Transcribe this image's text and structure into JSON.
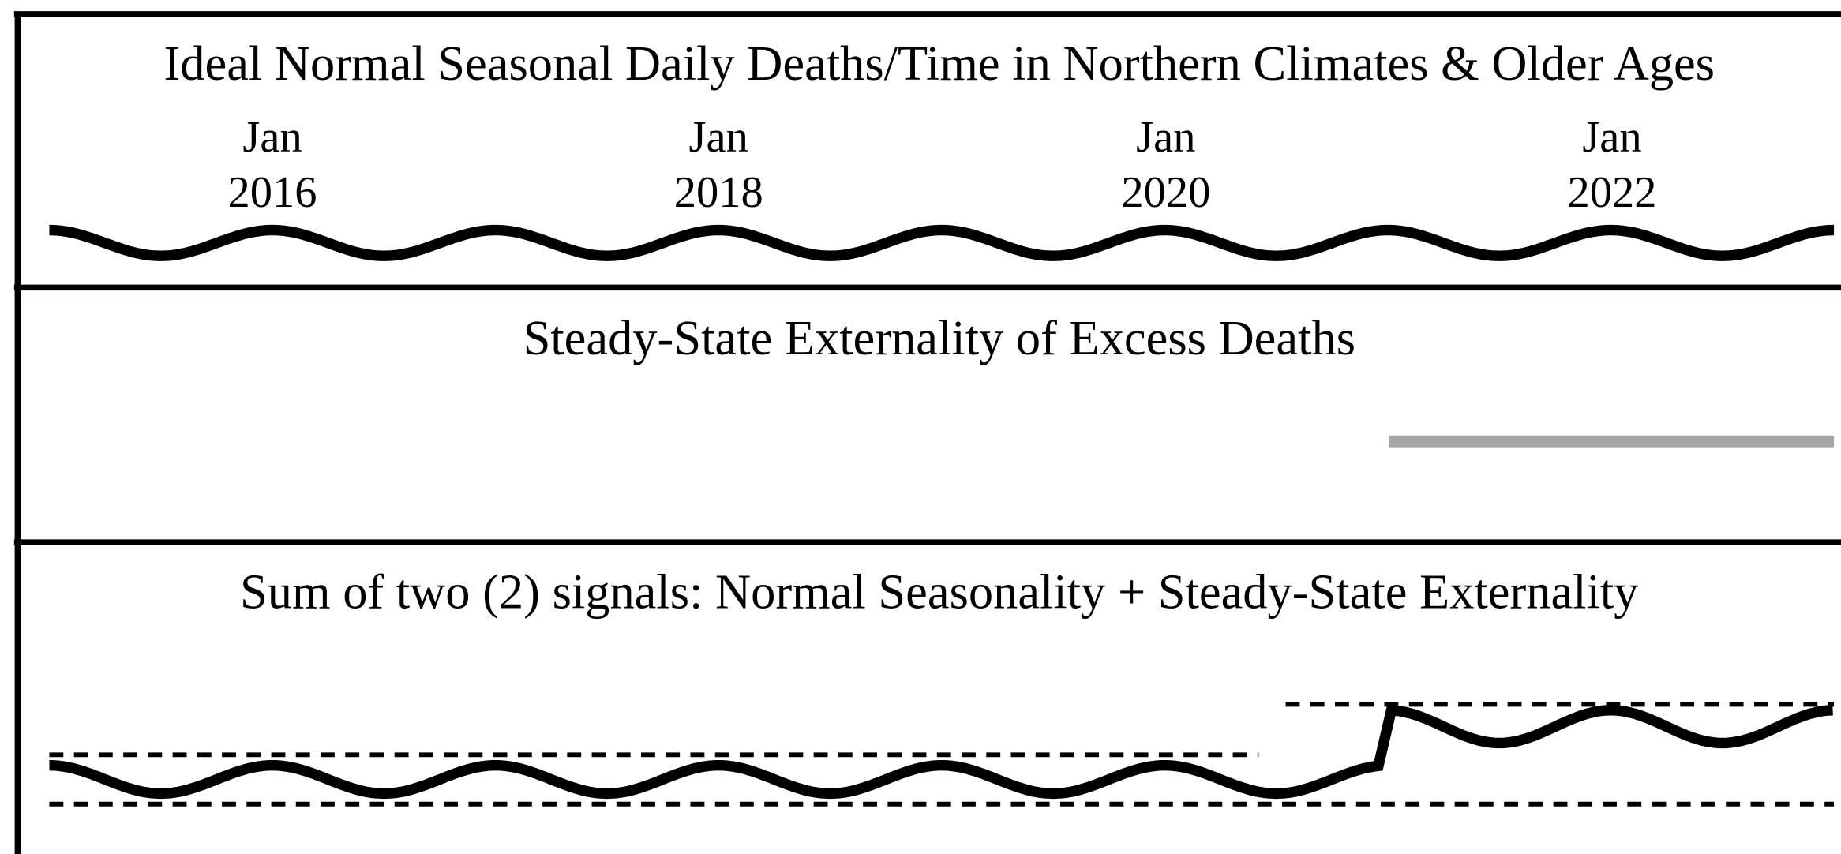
{
  "panels": [
    {
      "title": "Ideal Normal Seasonal Daily Deaths/Time in Northern Climates & Older Ages",
      "ticks": [
        {
          "month": "Jan",
          "year": "2016"
        },
        {
          "month": "Jan",
          "year": "2018"
        },
        {
          "month": "Jan",
          "year": "2020"
        },
        {
          "month": "Jan",
          "year": "2022"
        }
      ]
    },
    {
      "title": "Steady-State Externality of Excess Deaths"
    },
    {
      "title": "Sum of two (2) signals:  Normal Seasonality + Steady-State Externality"
    }
  ]
}
